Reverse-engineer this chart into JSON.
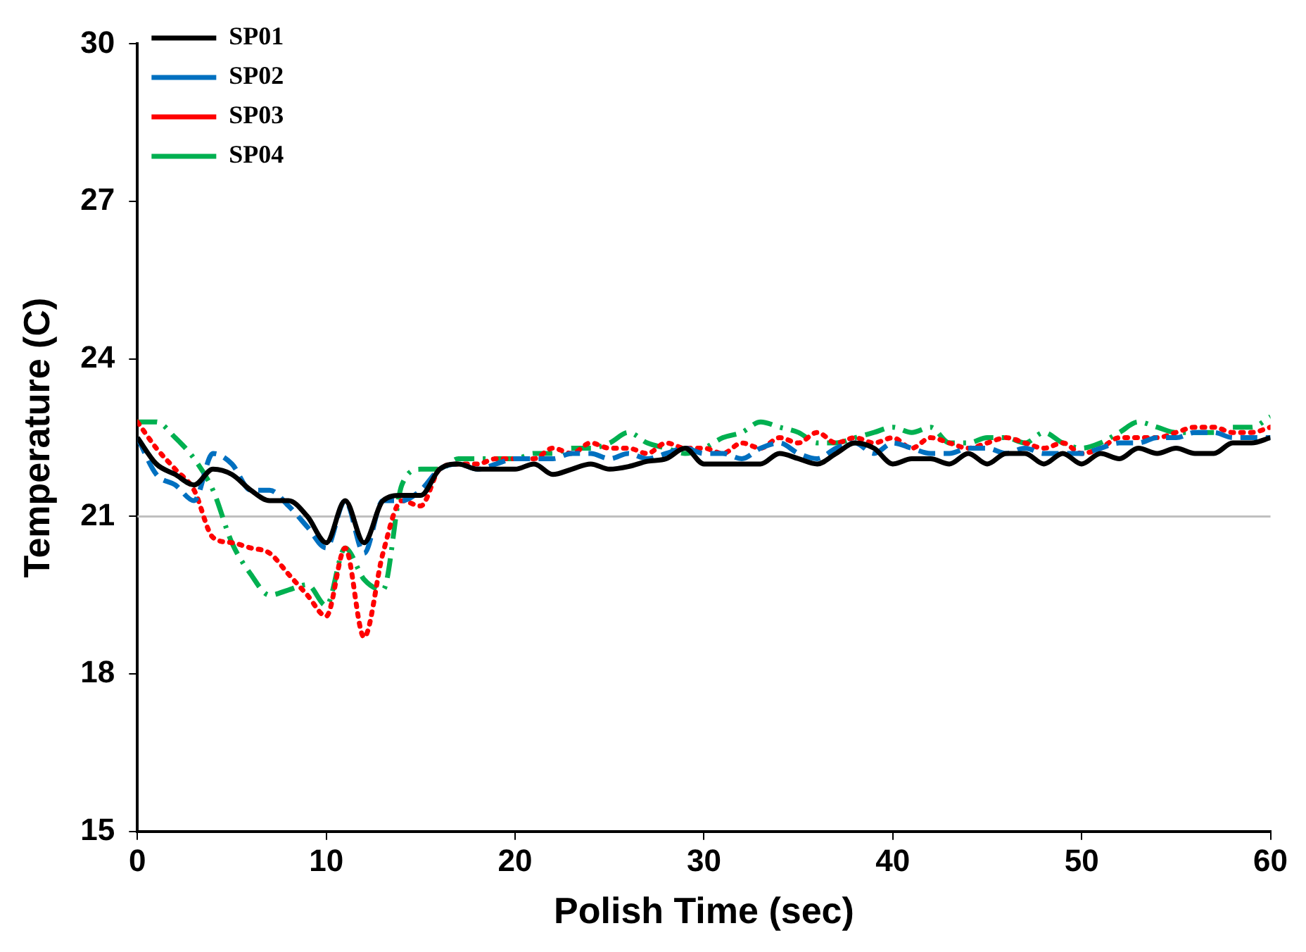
{
  "chart_data": {
    "type": "line",
    "xlabel": "Polish Time (sec)",
    "ylabel": "Temperature (C)",
    "x": [
      0,
      1,
      2,
      3,
      4,
      5,
      6,
      7,
      8,
      9,
      10,
      11,
      12,
      13,
      14,
      15,
      16,
      17,
      18,
      19,
      20,
      21,
      22,
      23,
      24,
      25,
      26,
      27,
      28,
      29,
      30,
      31,
      32,
      33,
      34,
      35,
      36,
      37,
      38,
      39,
      40,
      41,
      42,
      43,
      44,
      45,
      46,
      47,
      48,
      49,
      50,
      51,
      52,
      53,
      54,
      55,
      56,
      57,
      58,
      59,
      60
    ],
    "series": [
      {
        "name": "SP01",
        "color": "#000000",
        "line_style": "solid",
        "values": [
          22.5,
          22.0,
          21.8,
          21.6,
          21.9,
          21.8,
          21.5,
          21.3,
          21.3,
          21.0,
          20.5,
          21.3,
          20.5,
          21.3,
          21.4,
          21.4,
          21.9,
          22.0,
          21.9,
          21.9,
          21.9,
          22.0,
          21.8,
          21.9,
          22.0,
          21.9,
          21.95,
          22.05,
          22.1,
          22.3,
          22.0,
          22.0,
          22.0,
          22.0,
          22.2,
          22.1,
          22.0,
          22.2,
          22.4,
          22.3,
          22.0,
          22.1,
          22.1,
          22.0,
          22.2,
          22.0,
          22.2,
          22.2,
          22.0,
          22.2,
          22.0,
          22.2,
          22.1,
          22.3,
          22.2,
          22.3,
          22.2,
          22.2,
          22.4,
          22.4,
          22.5
        ]
      },
      {
        "name": "SP02",
        "color": "#0070c0",
        "line_style": "dashed",
        "values": [
          22.5,
          21.8,
          21.6,
          21.3,
          22.2,
          22.0,
          21.5,
          21.5,
          21.2,
          20.8,
          20.4,
          21.3,
          20.3,
          21.3,
          21.3,
          21.5,
          21.9,
          22.0,
          21.9,
          22.0,
          22.1,
          22.1,
          22.1,
          22.2,
          22.2,
          22.1,
          22.2,
          22.1,
          22.2,
          22.3,
          22.2,
          22.2,
          22.1,
          22.3,
          22.4,
          22.2,
          22.1,
          22.3,
          22.4,
          22.2,
          22.4,
          22.3,
          22.2,
          22.2,
          22.3,
          22.3,
          22.2,
          22.3,
          22.2,
          22.2,
          22.2,
          22.3,
          22.4,
          22.4,
          22.5,
          22.5,
          22.6,
          22.6,
          22.5,
          22.5,
          22.5
        ]
      },
      {
        "name": "SP03",
        "color": "#ff0000",
        "line_style": "dotted",
        "values": [
          22.8,
          22.3,
          21.9,
          21.5,
          20.6,
          20.5,
          20.4,
          20.3,
          19.9,
          19.5,
          19.1,
          20.4,
          18.7,
          20.3,
          21.3,
          21.2,
          21.9,
          22.0,
          22.0,
          22.1,
          22.1,
          22.1,
          22.3,
          22.2,
          22.4,
          22.3,
          22.3,
          22.2,
          22.4,
          22.3,
          22.3,
          22.2,
          22.4,
          22.3,
          22.5,
          22.4,
          22.6,
          22.4,
          22.5,
          22.4,
          22.5,
          22.3,
          22.5,
          22.4,
          22.3,
          22.4,
          22.5,
          22.4,
          22.3,
          22.4,
          22.2,
          22.3,
          22.5,
          22.5,
          22.5,
          22.6,
          22.7,
          22.7,
          22.6,
          22.6,
          22.7
        ]
      },
      {
        "name": "SP04",
        "color": "#00b050",
        "line_style": "dashed",
        "values": [
          22.8,
          22.8,
          22.5,
          22.1,
          21.5,
          20.5,
          19.9,
          19.5,
          19.6,
          19.7,
          19.3,
          20.4,
          19.8,
          19.6,
          21.6,
          21.9,
          21.9,
          22.1,
          22.1,
          22.1,
          22.1,
          22.2,
          22.2,
          22.3,
          22.3,
          22.4,
          22.6,
          22.4,
          22.3,
          22.2,
          22.3,
          22.5,
          22.6,
          22.8,
          22.7,
          22.6,
          22.4,
          22.4,
          22.5,
          22.6,
          22.7,
          22.6,
          22.7,
          22.4,
          22.4,
          22.5,
          22.5,
          22.4,
          22.6,
          22.4,
          22.3,
          22.4,
          22.6,
          22.8,
          22.7,
          22.6,
          22.6,
          22.6,
          22.7,
          22.7,
          22.9
        ]
      }
    ],
    "xlim": [
      0,
      60
    ],
    "xticks": [
      0,
      10,
      20,
      30,
      40,
      50,
      60
    ],
    "ylim": [
      15,
      30
    ],
    "yticks": [
      15,
      18,
      21,
      24,
      27,
      30
    ],
    "ref_lines": [
      {
        "axis": "y",
        "value": 21,
        "color": "#bfbfbf"
      }
    ],
    "grid": false,
    "legend": "top left",
    "marker": "none"
  }
}
